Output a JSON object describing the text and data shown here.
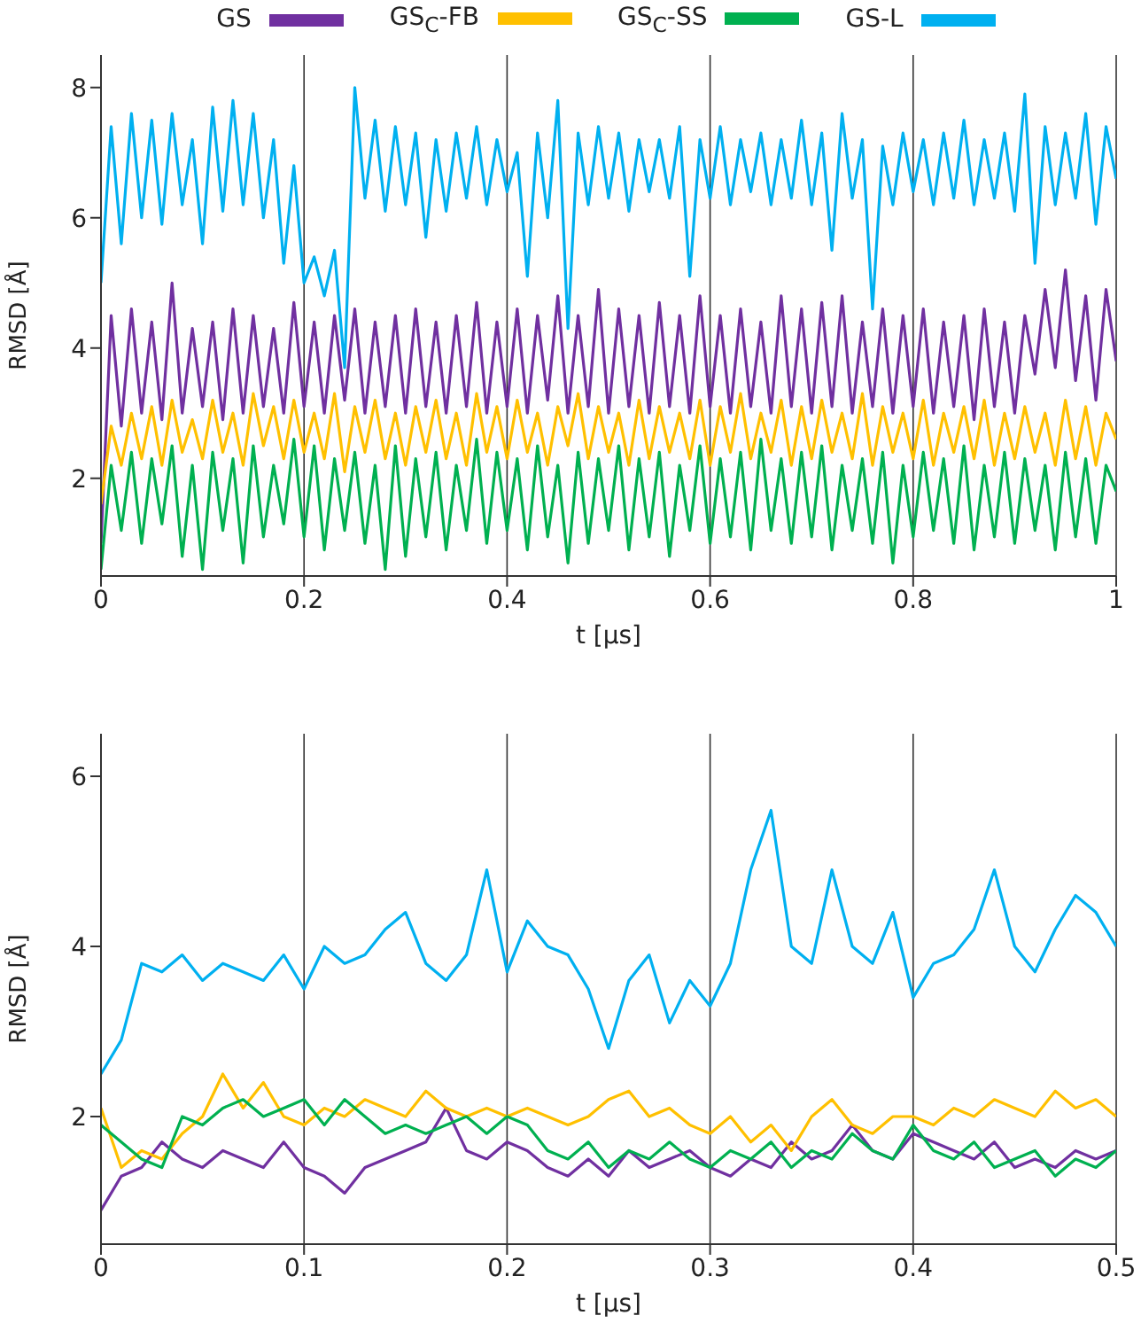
{
  "chart_data": [
    {
      "type": "line",
      "xlabel": "t [μs]",
      "ylabel": "RMSD [Å]",
      "xlim": [
        0,
        1
      ],
      "xticks": [
        0,
        0.2,
        0.4,
        0.6,
        0.8,
        1
      ],
      "ylim": [
        0.5,
        8.5
      ],
      "yticks": [
        2,
        4,
        6,
        8
      ],
      "grid": "x",
      "legend": "top",
      "x": [
        0,
        0.01,
        0.02,
        0.03,
        0.04,
        0.05,
        0.06,
        0.07,
        0.08,
        0.09,
        0.1,
        0.11,
        0.12,
        0.13,
        0.14,
        0.15,
        0.16,
        0.17,
        0.18,
        0.19,
        0.2,
        0.21,
        0.22,
        0.23,
        0.24,
        0.25,
        0.26,
        0.27,
        0.28,
        0.29,
        0.3,
        0.31,
        0.32,
        0.33,
        0.34,
        0.35,
        0.36,
        0.37,
        0.38,
        0.39,
        0.4,
        0.41,
        0.42,
        0.43,
        0.44,
        0.45,
        0.46,
        0.47,
        0.48,
        0.49,
        0.5,
        0.51,
        0.52,
        0.53,
        0.54,
        0.55,
        0.56,
        0.57,
        0.58,
        0.59,
        0.6,
        0.61,
        0.62,
        0.63,
        0.64,
        0.65,
        0.66,
        0.67,
        0.68,
        0.69,
        0.7,
        0.71,
        0.72,
        0.73,
        0.74,
        0.75,
        0.76,
        0.77,
        0.78,
        0.79,
        0.8,
        0.81,
        0.82,
        0.83,
        0.84,
        0.85,
        0.86,
        0.87,
        0.88,
        0.89,
        0.9,
        0.91,
        0.92,
        0.93,
        0.94,
        0.95,
        0.96,
        0.97,
        0.98,
        0.99,
        1
      ],
      "series": [
        {
          "name": "GS",
          "color": "#7030a0",
          "values": [
            1.0,
            4.5,
            2.8,
            4.6,
            3.0,
            4.4,
            2.9,
            5.0,
            3.0,
            4.3,
            3.1,
            4.4,
            2.9,
            4.6,
            3.0,
            4.5,
            3.1,
            4.3,
            3.0,
            4.7,
            3.1,
            4.4,
            3.0,
            4.5,
            3.2,
            4.6,
            3.0,
            4.4,
            3.1,
            4.5,
            3.0,
            4.6,
            3.1,
            4.4,
            3.0,
            4.5,
            3.1,
            4.7,
            3.0,
            4.4,
            3.1,
            4.6,
            3.0,
            4.5,
            3.2,
            4.8,
            3.0,
            4.5,
            3.1,
            4.9,
            3.0,
            4.6,
            3.1,
            4.5,
            3.0,
            4.7,
            3.1,
            4.5,
            3.0,
            4.8,
            3.1,
            4.5,
            3.0,
            4.6,
            3.1,
            4.4,
            3.0,
            4.8,
            3.1,
            4.6,
            3.0,
            4.7,
            3.1,
            4.8,
            3.0,
            4.4,
            3.1,
            4.6,
            3.0,
            4.5,
            3.1,
            4.6,
            3.0,
            4.4,
            3.1,
            4.5,
            2.9,
            4.6,
            3.1,
            4.4,
            3.0,
            4.5,
            3.6,
            4.9,
            3.7,
            5.2,
            3.5,
            4.8,
            3.2,
            4.9,
            3.8
          ]
        },
        {
          "name": "GS$_{C}$-FB",
          "color": "#ffc000",
          "values": [
            1.6,
            2.8,
            2.2,
            3.0,
            2.3,
            3.1,
            2.2,
            3.2,
            2.4,
            2.9,
            2.3,
            3.2,
            2.4,
            3.0,
            2.2,
            3.3,
            2.5,
            3.1,
            2.3,
            3.2,
            2.4,
            3.0,
            2.3,
            3.3,
            2.1,
            3.1,
            2.4,
            3.2,
            2.3,
            3.0,
            2.2,
            3.1,
            2.4,
            3.2,
            2.3,
            3.0,
            2.2,
            3.3,
            2.4,
            3.1,
            2.3,
            3.2,
            2.4,
            3.0,
            2.2,
            3.1,
            2.5,
            3.3,
            2.3,
            3.1,
            2.4,
            3.0,
            2.2,
            3.2,
            2.3,
            3.1,
            2.4,
            3.0,
            2.3,
            3.2,
            2.2,
            3.1,
            2.4,
            3.3,
            2.3,
            3.0,
            2.4,
            3.2,
            2.2,
            3.1,
            2.3,
            3.2,
            2.4,
            3.0,
            2.3,
            3.3,
            2.2,
            3.1,
            2.4,
            3.0,
            2.3,
            3.2,
            2.2,
            3.0,
            2.4,
            3.1,
            2.3,
            3.2,
            2.2,
            3.0,
            2.3,
            3.1,
            2.4,
            3.0,
            2.2,
            3.2,
            2.3,
            3.1,
            2.2,
            3.0,
            2.6
          ]
        },
        {
          "name": "GS$_{C}$-SS",
          "color": "#00b050",
          "values": [
            0.6,
            2.2,
            1.2,
            2.4,
            1.0,
            2.3,
            1.3,
            2.5,
            0.8,
            2.2,
            0.6,
            2.4,
            1.2,
            2.3,
            0.7,
            2.5,
            1.1,
            2.2,
            1.3,
            2.6,
            1.1,
            2.5,
            0.9,
            2.3,
            1.2,
            2.4,
            1.0,
            2.2,
            0.6,
            2.5,
            0.8,
            2.3,
            1.1,
            2.4,
            0.9,
            2.2,
            1.2,
            2.6,
            1.0,
            2.4,
            1.2,
            2.3,
            0.9,
            2.5,
            1.1,
            2.2,
            0.7,
            2.4,
            1.0,
            2.3,
            1.2,
            2.5,
            0.9,
            2.3,
            1.1,
            2.4,
            0.8,
            2.2,
            1.2,
            2.5,
            1.0,
            2.3,
            1.1,
            2.4,
            0.9,
            2.6,
            1.2,
            2.3,
            1.0,
            2.4,
            1.1,
            2.5,
            0.9,
            2.2,
            1.2,
            2.3,
            1.0,
            2.4,
            0.7,
            2.2,
            1.1,
            2.4,
            1.2,
            2.3,
            1.0,
            2.5,
            0.9,
            2.2,
            1.1,
            2.4,
            1.0,
            2.3,
            1.2,
            2.2,
            0.9,
            2.4,
            1.1,
            2.3,
            1.0,
            2.2,
            1.8
          ]
        },
        {
          "name": "GS-L",
          "color": "#00b0f0",
          "values": [
            5.0,
            7.4,
            5.6,
            7.6,
            6.0,
            7.5,
            5.9,
            7.6,
            6.2,
            7.2,
            5.6,
            7.7,
            6.1,
            7.8,
            6.2,
            7.6,
            6.0,
            7.2,
            5.3,
            6.8,
            5.0,
            5.4,
            4.8,
            5.5,
            3.7,
            8.0,
            6.3,
            7.5,
            6.1,
            7.4,
            6.2,
            7.3,
            5.7,
            7.2,
            6.1,
            7.3,
            6.3,
            7.4,
            6.2,
            7.2,
            6.4,
            7.0,
            5.1,
            7.3,
            6.0,
            7.8,
            4.3,
            7.3,
            6.2,
            7.4,
            6.3,
            7.3,
            6.1,
            7.2,
            6.4,
            7.2,
            6.3,
            7.4,
            5.1,
            7.2,
            6.3,
            7.4,
            6.2,
            7.2,
            6.4,
            7.3,
            6.2,
            7.2,
            6.3,
            7.5,
            6.2,
            7.3,
            5.5,
            7.6,
            6.3,
            7.2,
            4.6,
            7.1,
            6.2,
            7.3,
            6.4,
            7.2,
            6.2,
            7.3,
            6.3,
            7.5,
            6.2,
            7.2,
            6.3,
            7.3,
            6.1,
            7.9,
            5.3,
            7.4,
            6.2,
            7.3,
            6.3,
            7.6,
            5.9,
            7.4,
            6.6
          ]
        }
      ]
    },
    {
      "type": "line",
      "xlabel": "t [μs]",
      "ylabel": "RMSD [Å]",
      "xlim": [
        0,
        0.5
      ],
      "xticks": [
        0,
        0.1,
        0.2,
        0.3,
        0.4,
        0.5
      ],
      "ylim": [
        0.5,
        6.5
      ],
      "yticks": [
        2,
        4,
        6
      ],
      "grid": "x",
      "x": [
        0,
        0.01,
        0.02,
        0.03,
        0.04,
        0.05,
        0.06,
        0.07,
        0.08,
        0.09,
        0.1,
        0.11,
        0.12,
        0.13,
        0.14,
        0.15,
        0.16,
        0.17,
        0.18,
        0.19,
        0.2,
        0.21,
        0.22,
        0.23,
        0.24,
        0.25,
        0.26,
        0.27,
        0.28,
        0.29,
        0.3,
        0.31,
        0.32,
        0.33,
        0.34,
        0.35,
        0.36,
        0.37,
        0.38,
        0.39,
        0.4,
        0.41,
        0.42,
        0.43,
        0.44,
        0.45,
        0.46,
        0.47,
        0.48,
        0.49,
        0.5
      ],
      "series": [
        {
          "color": "#7030a0",
          "values": [
            0.9,
            1.3,
            1.4,
            1.7,
            1.5,
            1.4,
            1.6,
            1.5,
            1.4,
            1.7,
            1.4,
            1.3,
            1.1,
            1.4,
            1.5,
            1.6,
            1.7,
            2.1,
            1.6,
            1.5,
            1.7,
            1.6,
            1.4,
            1.3,
            1.5,
            1.3,
            1.6,
            1.4,
            1.5,
            1.6,
            1.4,
            1.3,
            1.5,
            1.4,
            1.7,
            1.5,
            1.6,
            1.9,
            1.6,
            1.5,
            1.8,
            1.7,
            1.6,
            1.5,
            1.7,
            1.4,
            1.5,
            1.4,
            1.6,
            1.5,
            1.6
          ]
        },
        {
          "color": "#ffc000",
          "values": [
            2.1,
            1.4,
            1.6,
            1.5,
            1.8,
            2.0,
            2.5,
            2.1,
            2.4,
            2.0,
            1.9,
            2.1,
            2.0,
            2.2,
            2.1,
            2.0,
            2.3,
            2.1,
            2.0,
            2.1,
            2.0,
            2.1,
            2.0,
            1.9,
            2.0,
            2.2,
            2.3,
            2.0,
            2.1,
            1.9,
            1.8,
            2.0,
            1.7,
            1.9,
            1.6,
            2.0,
            2.2,
            1.9,
            1.8,
            2.0,
            2.0,
            1.9,
            2.1,
            2.0,
            2.2,
            2.1,
            2.0,
            2.3,
            2.1,
            2.2,
            2.0
          ]
        },
        {
          "color": "#00b050",
          "values": [
            1.9,
            1.7,
            1.5,
            1.4,
            2.0,
            1.9,
            2.1,
            2.2,
            2.0,
            2.1,
            2.2,
            1.9,
            2.2,
            2.0,
            1.8,
            1.9,
            1.8,
            1.9,
            2.0,
            1.8,
            2.0,
            1.9,
            1.6,
            1.5,
            1.7,
            1.4,
            1.6,
            1.5,
            1.7,
            1.5,
            1.4,
            1.6,
            1.5,
            1.7,
            1.4,
            1.6,
            1.5,
            1.8,
            1.6,
            1.5,
            1.9,
            1.6,
            1.5,
            1.7,
            1.4,
            1.5,
            1.6,
            1.3,
            1.5,
            1.4,
            1.6
          ]
        },
        {
          "color": "#00b0f0",
          "values": [
            2.5,
            2.9,
            3.8,
            3.7,
            3.9,
            3.6,
            3.8,
            3.7,
            3.6,
            3.9,
            3.5,
            4.0,
            3.8,
            3.9,
            4.2,
            4.4,
            3.8,
            3.6,
            3.9,
            4.9,
            3.7,
            4.3,
            4.0,
            3.9,
            3.5,
            2.8,
            3.6,
            3.9,
            3.1,
            3.6,
            3.3,
            3.8,
            4.9,
            5.6,
            4.0,
            3.8,
            4.9,
            4.0,
            3.8,
            4.4,
            3.4,
            3.8,
            3.9,
            4.2,
            4.9,
            4.0,
            3.7,
            4.2,
            4.6,
            4.4,
            4.0
          ]
        }
      ]
    }
  ]
}
